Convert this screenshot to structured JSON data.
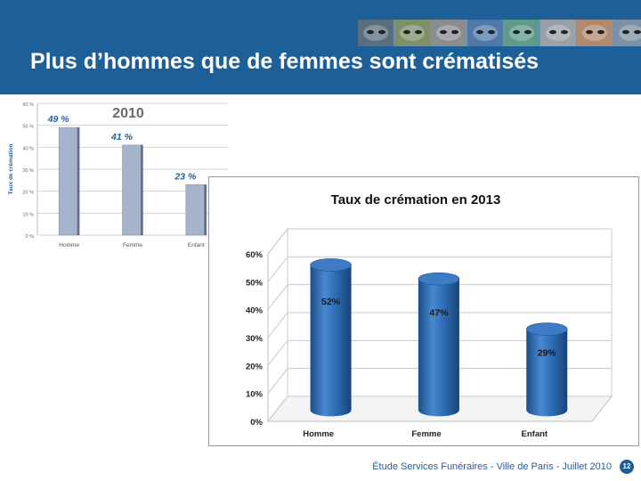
{
  "header": {
    "title": "Plus d’hommes que de femmes sont crématisés",
    "background_color": "#1d5f98",
    "photo_strip": [
      "face-photo-1",
      "face-photo-2",
      "face-photo-3",
      "face-photo-4",
      "face-photo-5",
      "face-photo-6",
      "face-photo-7",
      "face-photo-8"
    ]
  },
  "chart_data": [
    {
      "type": "bar",
      "title": "2010",
      "ylabel": "Taux de crémation",
      "categories": [
        "Homme",
        "Femme",
        "Enfant"
      ],
      "values": [
        49,
        41,
        23
      ],
      "data_labels": [
        "49 %",
        "41 %",
        "23 %"
      ],
      "ylim": [
        0,
        60
      ],
      "yticks": [
        0,
        10,
        20,
        30,
        40,
        50,
        60
      ],
      "ytick_labels": [
        "0 %",
        "10 %",
        "20 %",
        "30 %",
        "40 %",
        "50 %",
        "60 %"
      ],
      "grid": true,
      "bar_color": "#a5b3cb",
      "label_color": "#1f5f9e"
    },
    {
      "type": "bar",
      "title": "Taux de crémation en 2013",
      "categories": [
        "Homme",
        "Femme",
        "Enfant"
      ],
      "values": [
        52,
        47,
        29
      ],
      "data_labels": [
        "52%",
        "47%",
        "29%"
      ],
      "ylim": [
        0,
        60
      ],
      "yticks": [
        0,
        10,
        20,
        30,
        40,
        50,
        60
      ],
      "ytick_labels": [
        "0%",
        "10%",
        "20%",
        "30%",
        "40%",
        "50%",
        "60%"
      ],
      "grid": true,
      "bar_color": "#2f6fb8"
    }
  ],
  "footer": {
    "text": "Étude Services Funéraires - Ville de Paris - Juillet 2010",
    "page_number": "12"
  }
}
